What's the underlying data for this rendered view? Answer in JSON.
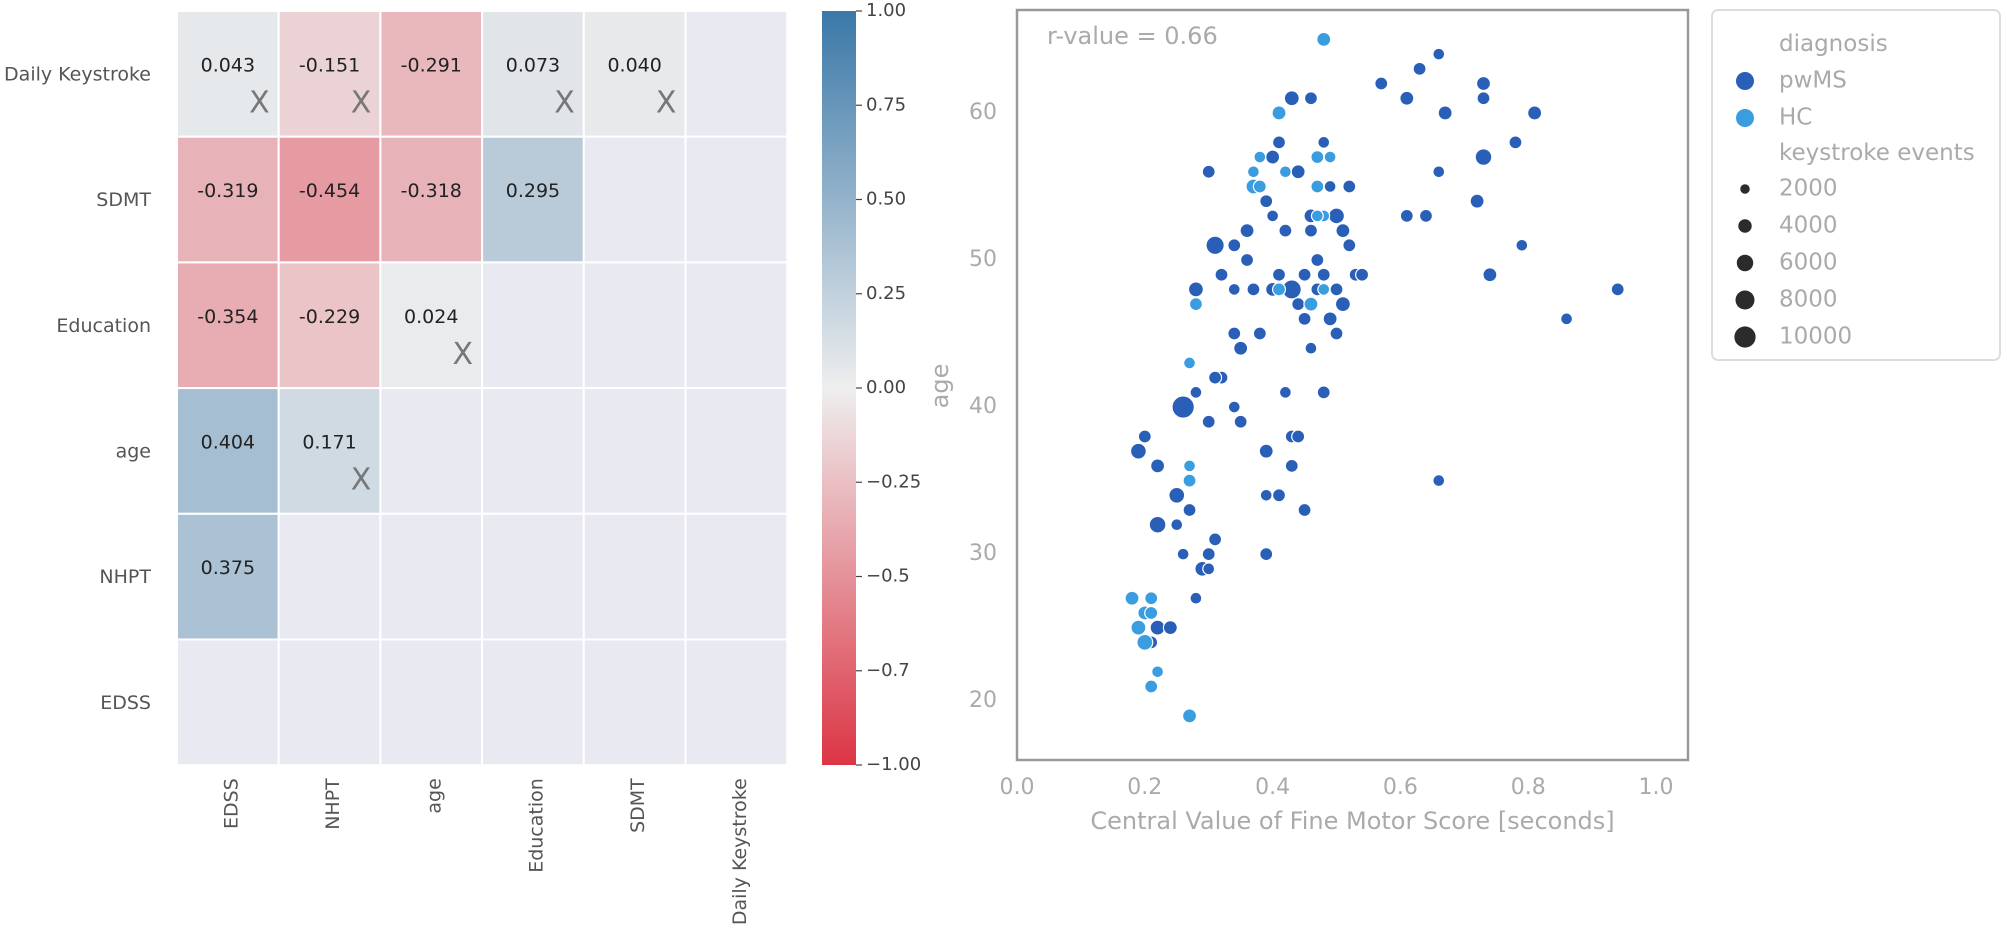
{
  "chart_data": [
    {
      "type": "heatmap",
      "title": "",
      "row_labels": [
        "Daily Keystroke",
        "SDMT",
        "Education",
        "age",
        "NHPT",
        "EDSS"
      ],
      "col_labels": [
        "EDSS",
        "NHPT",
        "age",
        "Education",
        "SDMT",
        "Daily Keystroke"
      ],
      "values": [
        [
          0.043,
          -0.151,
          -0.291,
          0.073,
          0.04,
          null
        ],
        [
          -0.319,
          -0.454,
          -0.318,
          0.295,
          null,
          null
        ],
        [
          -0.354,
          -0.229,
          0.024,
          null,
          null,
          null
        ],
        [
          0.404,
          0.171,
          null,
          null,
          null,
          null
        ],
        [
          0.375,
          null,
          null,
          null,
          null,
          null
        ],
        [
          null,
          null,
          null,
          null,
          null,
          null
        ]
      ],
      "labels": [
        [
          "0.043",
          "-0.151",
          "-0.291",
          "0.073",
          "0.040",
          ""
        ],
        [
          "-0.319",
          "-0.454",
          "-0.318",
          "0.295",
          "",
          ""
        ],
        [
          "-0.354",
          "-0.229",
          "0.024",
          "",
          "",
          ""
        ],
        [
          "0.404",
          "0.171",
          "",
          "",
          "",
          ""
        ],
        [
          "0.375",
          "",
          "",
          "",
          "",
          ""
        ],
        [
          "",
          "",
          "",
          "",
          "",
          ""
        ]
      ],
      "not_significant_marker": "X",
      "not_significant": [
        [
          true,
          true,
          false,
          true,
          true,
          false
        ],
        [
          false,
          false,
          false,
          false,
          false,
          false
        ],
        [
          false,
          false,
          true,
          false,
          false,
          false
        ],
        [
          false,
          true,
          false,
          false,
          false,
          false
        ],
        [
          false,
          false,
          false,
          false,
          false,
          false
        ],
        [
          false,
          false,
          false,
          false,
          false,
          false
        ]
      ],
      "colorbar": {
        "range": [
          -1.0,
          1.0
        ],
        "ticks": [
          "1.00",
          "0.75",
          "0.50",
          "0.25",
          "0.00",
          "−0.25",
          "−0.5",
          "−0.7",
          "−1.00"
        ],
        "tick_values": [
          1.0,
          0.75,
          0.5,
          0.25,
          0.0,
          -0.25,
          -0.5,
          -0.75,
          -1.0
        ],
        "color_negative": "#dc3545",
        "color_zero": "#eeeeee",
        "color_positive": "#3a78a8"
      },
      "empty_cell_color": "#e9e9f2"
    },
    {
      "type": "scatter",
      "annotation": "r-value = 0.66",
      "xlabel": "Central Value of Fine Motor Score [seconds]",
      "ylabel": "age",
      "xlim": [
        0.0,
        1.05
      ],
      "ylim": [
        16,
        67
      ],
      "xticks": [
        "0.0",
        "0.2",
        "0.4",
        "0.6",
        "0.8",
        "1.0"
      ],
      "xtick_values": [
        0.0,
        0.2,
        0.4,
        0.6,
        0.8,
        1.0
      ],
      "yticks": [
        "20",
        "30",
        "40",
        "50",
        "60"
      ],
      "ytick_values": [
        20,
        30,
        40,
        50,
        60
      ],
      "legend": {
        "hue_title": "diagnosis",
        "hue_items": [
          {
            "label": "pwMS",
            "color": "#2a5fb8"
          },
          {
            "label": "HC",
            "color": "#3a9ddf"
          }
        ],
        "size_title": "keystroke events",
        "size_items": [
          "2000",
          "4000",
          "6000",
          "8000",
          "10000"
        ],
        "size_values": [
          2000,
          4000,
          6000,
          8000,
          10000
        ],
        "position": "outside-right"
      },
      "series": [
        {
          "name": "pwMS",
          "color": "#2a5fb8",
          "points": [
            [
              0.19,
              37,
              4500
            ],
            [
              0.2,
              38,
              3000
            ],
            [
              0.22,
              36,
              3500
            ],
            [
              0.22,
              32,
              5000
            ],
            [
              0.25,
              34,
              4500
            ],
            [
              0.26,
              40,
              9000
            ],
            [
              0.27,
              33,
              3000
            ],
            [
              0.25,
              32,
              2500
            ],
            [
              0.29,
              29,
              4000
            ],
            [
              0.3,
              30,
              3000
            ],
            [
              0.31,
              31,
              3000
            ],
            [
              0.3,
              29,
              2500
            ],
            [
              0.28,
              27,
              2500
            ],
            [
              0.26,
              30,
              2500
            ],
            [
              0.22,
              25,
              4000
            ],
            [
              0.24,
              25,
              3500
            ],
            [
              0.21,
              26,
              3000
            ],
            [
              0.21,
              24,
              3000
            ],
            [
              0.28,
              41,
              2500
            ],
            [
              0.3,
              39,
              3000
            ],
            [
              0.32,
              42,
              3000
            ],
            [
              0.35,
              39,
              3000
            ],
            [
              0.34,
              40,
              2500
            ],
            [
              0.35,
              44,
              3500
            ],
            [
              0.31,
              42,
              3000
            ],
            [
              0.28,
              48,
              4000
            ],
            [
              0.31,
              51,
              6000
            ],
            [
              0.32,
              49,
              3000
            ],
            [
              0.34,
              48,
              2500
            ],
            [
              0.34,
              51,
              3000
            ],
            [
              0.36,
              52,
              3500
            ],
            [
              0.36,
              50,
              3000
            ],
            [
              0.38,
              55,
              3500
            ],
            [
              0.39,
              54,
              3000
            ],
            [
              0.4,
              57,
              3500
            ],
            [
              0.41,
              58,
              3000
            ],
            [
              0.42,
              52,
              3000
            ],
            [
              0.4,
              53,
              2500
            ],
            [
              0.43,
              61,
              4000
            ],
            [
              0.44,
              56,
              3500
            ],
            [
              0.4,
              48,
              3500
            ],
            [
              0.41,
              49,
              3000
            ],
            [
              0.43,
              48,
              6500
            ],
            [
              0.44,
              47,
              3000
            ],
            [
              0.45,
              49,
              3000
            ],
            [
              0.46,
              53,
              3500
            ],
            [
              0.46,
              52,
              3000
            ],
            [
              0.47,
              50,
              3000
            ],
            [
              0.45,
              46,
              3000
            ],
            [
              0.46,
              44,
              2500
            ],
            [
              0.47,
              48,
              3000
            ],
            [
              0.48,
              49,
              3000
            ],
            [
              0.49,
              46,
              3500
            ],
            [
              0.5,
              45,
              3000
            ],
            [
              0.5,
              48,
              3000
            ],
            [
              0.5,
              53,
              4500
            ],
            [
              0.51,
              52,
              3500
            ],
            [
              0.52,
              51,
              3000
            ],
            [
              0.51,
              47,
              4000
            ],
            [
              0.53,
              49,
              3000
            ],
            [
              0.52,
              55,
              3000
            ],
            [
              0.54,
              49,
              3000
            ],
            [
              0.49,
              57,
              3000
            ],
            [
              0.48,
              58,
              2500
            ],
            [
              0.46,
              61,
              3000
            ],
            [
              0.42,
              41,
              2500
            ],
            [
              0.43,
              38,
              3000
            ],
            [
              0.44,
              38,
              3000
            ],
            [
              0.45,
              33,
              3000
            ],
            [
              0.43,
              36,
              3000
            ],
            [
              0.39,
              30,
              3000
            ],
            [
              0.39,
              37,
              3500
            ],
            [
              0.39,
              34,
              2500
            ],
            [
              0.41,
              34,
              3000
            ],
            [
              0.38,
              45,
              3000
            ],
            [
              0.34,
              45,
              3000
            ],
            [
              0.37,
              48,
              3000
            ],
            [
              0.3,
              56,
              3000
            ],
            [
              0.48,
              41,
              3000
            ],
            [
              0.49,
              55,
              2500
            ],
            [
              0.57,
              62,
              3000
            ],
            [
              0.61,
              61,
              3500
            ],
            [
              0.63,
              63,
              3000
            ],
            [
              0.66,
              64,
              2500
            ],
            [
              0.67,
              60,
              3500
            ],
            [
              0.61,
              53,
              3000
            ],
            [
              0.64,
              53,
              3000
            ],
            [
              0.66,
              56,
              2500
            ],
            [
              0.72,
              54,
              3500
            ],
            [
              0.73,
              62,
              3500
            ],
            [
              0.73,
              61,
              3000
            ],
            [
              0.73,
              57,
              5000
            ],
            [
              0.74,
              49,
              3500
            ],
            [
              0.78,
              58,
              3000
            ],
            [
              0.79,
              51,
              2500
            ],
            [
              0.81,
              60,
              3500
            ],
            [
              0.86,
              46,
              2500
            ],
            [
              0.94,
              48,
              3000
            ],
            [
              0.66,
              35,
              2500
            ]
          ]
        },
        {
          "name": "HC",
          "color": "#3a9ddf",
          "points": [
            [
              0.27,
              19,
              3500
            ],
            [
              0.21,
              21,
              3000
            ],
            [
              0.22,
              22,
              2500
            ],
            [
              0.18,
              27,
              3500
            ],
            [
              0.21,
              27,
              3000
            ],
            [
              0.19,
              25,
              4000
            ],
            [
              0.2,
              24,
              4500
            ],
            [
              0.2,
              26,
              3500
            ],
            [
              0.21,
              26,
              3000
            ],
            [
              0.27,
              35,
              3000
            ],
            [
              0.27,
              36,
              2500
            ],
            [
              0.28,
              47,
              3000
            ],
            [
              0.27,
              43,
              2500
            ],
            [
              0.37,
              55,
              4000
            ],
            [
              0.38,
              55,
              3000
            ],
            [
              0.37,
              56,
              2500
            ],
            [
              0.38,
              57,
              2500
            ],
            [
              0.41,
              48,
              3000
            ],
            [
              0.41,
              60,
              3500
            ],
            [
              0.42,
              56,
              2500
            ],
            [
              0.46,
              47,
              3500
            ],
            [
              0.47,
              55,
              3000
            ],
            [
              0.47,
              57,
              3000
            ],
            [
              0.48,
              53,
              2500
            ],
            [
              0.48,
              65,
              3500
            ],
            [
              0.48,
              48,
              2500
            ],
            [
              0.49,
              57,
              2500
            ],
            [
              0.47,
              53,
              2500
            ]
          ]
        }
      ]
    }
  ]
}
